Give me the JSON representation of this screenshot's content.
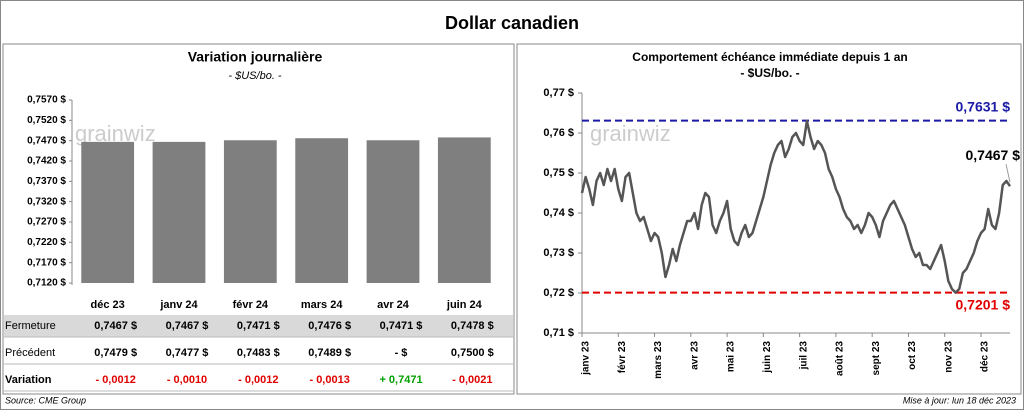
{
  "title": "Dollar canadien",
  "source": "Source: CME Group",
  "updated": "Mise à jour: lun 18 déc 2023",
  "watermark": "grainwiz",
  "chart_data": [
    {
      "type": "bar",
      "title": "Variation  journalière",
      "subtitle": "- $US/bo. -",
      "color": "#7f7f7f",
      "categories": [
        "déc 23",
        "janv 24",
        "févr 24",
        "mars 24",
        "avr 24",
        "juin 24"
      ],
      "values": [
        0.7467,
        0.7467,
        0.7471,
        0.7476,
        0.7471,
        0.7478
      ],
      "ylim": [
        0.712,
        0.757
      ],
      "yticks": [
        {
          "value": 0.757,
          "label": "0,7570 $"
        },
        {
          "value": 0.752,
          "label": "0,7520 $"
        },
        {
          "value": 0.747,
          "label": "0,7470 $"
        },
        {
          "value": 0.742,
          "label": "0,7420 $"
        },
        {
          "value": 0.737,
          "label": "0,7370 $"
        },
        {
          "value": 0.732,
          "label": "0,7320 $"
        },
        {
          "value": 0.727,
          "label": "0,7270 $"
        },
        {
          "value": 0.722,
          "label": "0,7220 $"
        },
        {
          "value": 0.717,
          "label": "0,7170 $"
        },
        {
          "value": 0.712,
          "label": "0,7120 $"
        }
      ],
      "table": {
        "rows": [
          {
            "label": "Fermeture",
            "cells": [
              "0,7467 $",
              "0,7467 $",
              "0,7471 $",
              "0,7476 $",
              "0,7471 $",
              "0,7478 $"
            ],
            "colors": [
              "#000",
              "#000",
              "#000",
              "#000",
              "#000",
              "#000"
            ]
          },
          {
            "label": "Précédent",
            "cells": [
              "0,7479 $",
              "0,7477 $",
              "0,7483 $",
              "0,7489 $",
              "-      $",
              "0,7500 $"
            ],
            "colors": [
              "#000",
              "#000",
              "#000",
              "#000",
              "#000",
              "#000"
            ]
          },
          {
            "label": "Variation",
            "cells": [
              "- 0,0012",
              "- 0,0010",
              "- 0,0012",
              "- 0,0013",
              "+ 0,7471",
              "- 0,0021"
            ],
            "colors": [
              "#e00000",
              "#e00000",
              "#e00000",
              "#e00000",
              "#00a000",
              "#e00000"
            ]
          }
        ]
      }
    },
    {
      "type": "line",
      "title": "Comportement échéance immédiate depuis 1 an",
      "subtitle": "- $US/bo. -",
      "color": "#555555",
      "values": [
        0.745,
        0.749,
        0.746,
        0.742,
        0.748,
        0.75,
        0.747,
        0.751,
        0.748,
        0.751,
        0.746,
        0.743,
        0.749,
        0.75,
        0.745,
        0.74,
        0.738,
        0.739,
        0.736,
        0.733,
        0.735,
        0.734,
        0.73,
        0.724,
        0.727,
        0.731,
        0.728,
        0.732,
        0.735,
        0.738,
        0.738,
        0.74,
        0.736,
        0.742,
        0.745,
        0.744,
        0.737,
        0.735,
        0.738,
        0.74,
        0.743,
        0.736,
        0.733,
        0.732,
        0.735,
        0.737,
        0.734,
        0.735,
        0.738,
        0.741,
        0.744,
        0.748,
        0.752,
        0.755,
        0.757,
        0.758,
        0.754,
        0.756,
        0.759,
        0.76,
        0.758,
        0.757,
        0.763,
        0.759,
        0.756,
        0.758,
        0.757,
        0.755,
        0.751,
        0.749,
        0.746,
        0.744,
        0.741,
        0.739,
        0.738,
        0.736,
        0.737,
        0.735,
        0.737,
        0.74,
        0.739,
        0.737,
        0.734,
        0.738,
        0.74,
        0.742,
        0.743,
        0.741,
        0.739,
        0.737,
        0.734,
        0.731,
        0.729,
        0.73,
        0.727,
        0.727,
        0.726,
        0.728,
        0.73,
        0.732,
        0.728,
        0.723,
        0.721,
        0.7201,
        0.721,
        0.725,
        0.726,
        0.728,
        0.73,
        0.733,
        0.735,
        0.736,
        0.741,
        0.737,
        0.736,
        0.74,
        0.747,
        0.748,
        0.7467
      ],
      "xlim": [
        0,
        118
      ],
      "xticks": [
        {
          "value": 0,
          "label": "janv 23"
        },
        {
          "value": 10,
          "label": "févr 23"
        },
        {
          "value": 20,
          "label": "mars 23"
        },
        {
          "value": 30,
          "label": "avr 23"
        },
        {
          "value": 40,
          "label": "mai 23"
        },
        {
          "value": 50,
          "label": "juin 23"
        },
        {
          "value": 60,
          "label": "juil 23"
        },
        {
          "value": 70,
          "label": "août 23"
        },
        {
          "value": 80,
          "label": "sept 23"
        },
        {
          "value": 90,
          "label": "oct 23"
        },
        {
          "value": 100,
          "label": "nov 23"
        },
        {
          "value": 110,
          "label": "déc 23"
        }
      ],
      "ylim": [
        0.71,
        0.77
      ],
      "yticks": [
        {
          "value": 0.77,
          "label": "0,77 $"
        },
        {
          "value": 0.76,
          "label": "0,76 $"
        },
        {
          "value": 0.75,
          "label": "0,75 $"
        },
        {
          "value": 0.74,
          "label": "0,74 $"
        },
        {
          "value": 0.73,
          "label": "0,73 $"
        },
        {
          "value": 0.72,
          "label": "0,72 $"
        },
        {
          "value": 0.71,
          "label": "0,71 $"
        }
      ],
      "reference_lines": [
        {
          "value": 0.7631,
          "label": "0,7631 $",
          "color": "#1a1aa6"
        },
        {
          "value": 0.7201,
          "label": "0,7201 $",
          "color": "#e00000"
        }
      ],
      "end_label": "0,7467 $"
    }
  ]
}
